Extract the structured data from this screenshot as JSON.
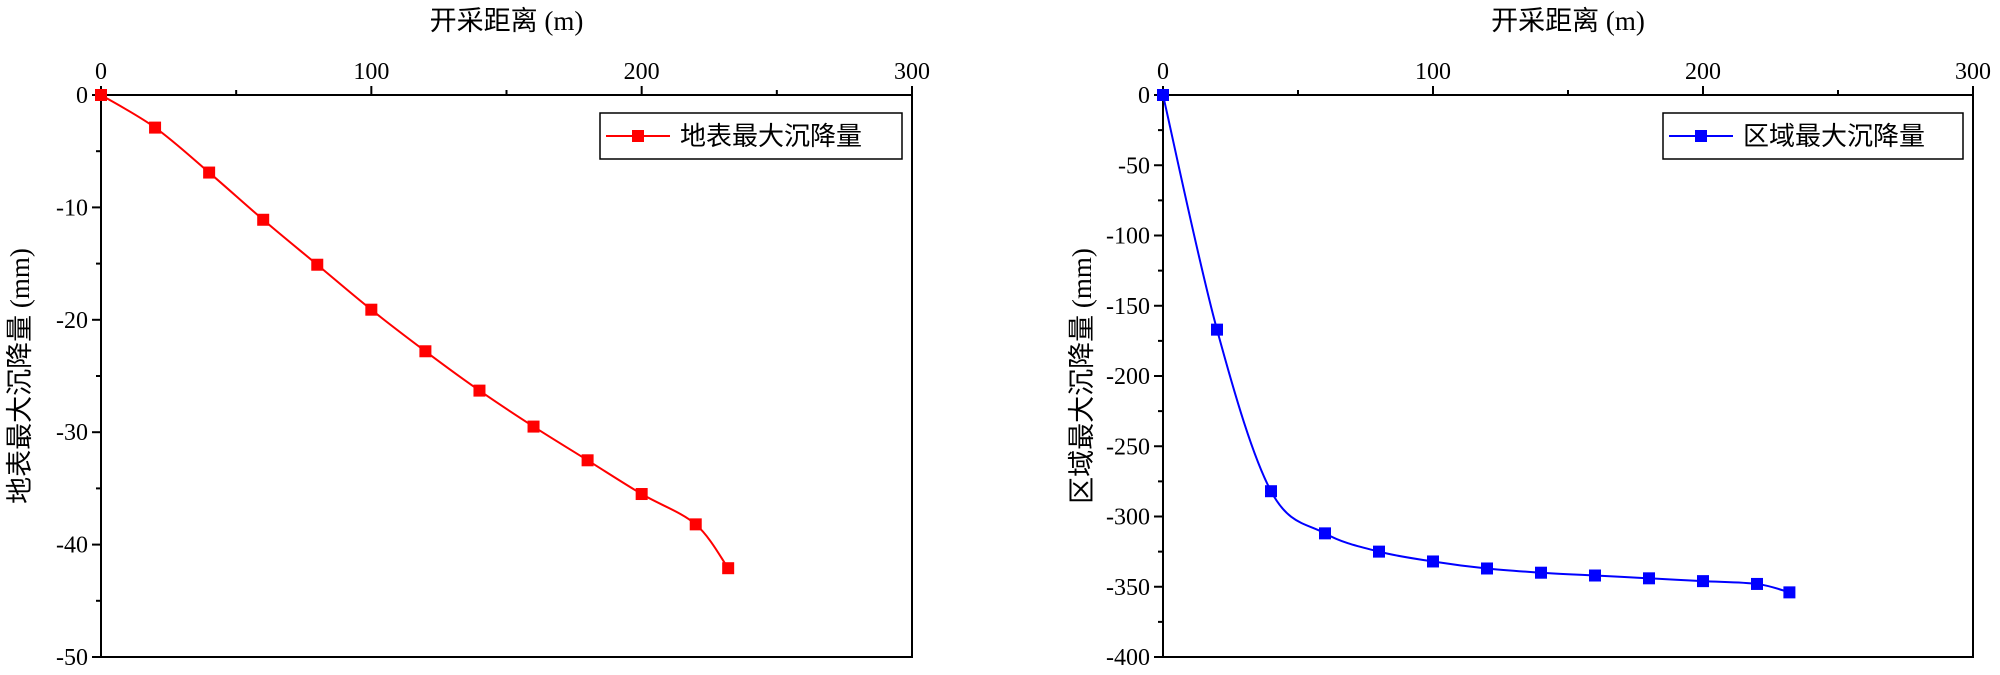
{
  "chart_data": [
    {
      "type": "line",
      "xlabel": "开采距离 (m)",
      "ylabel": "地表最大沉降量 (mm)",
      "xlim": [
        0,
        300
      ],
      "ylim": [
        -50,
        0
      ],
      "xticks": [
        0,
        100,
        200,
        300
      ],
      "yticks": [
        0,
        -10,
        -20,
        -30,
        -40,
        -50
      ],
      "x_axis_position": "top",
      "legend_position": "top-right",
      "grid": false,
      "markers": "square",
      "series": [
        {
          "name": "地表最大沉降量",
          "color": "#ff0000",
          "x": [
            0,
            20,
            40,
            60,
            80,
            100,
            120,
            140,
            160,
            180,
            200,
            220,
            232
          ],
          "y": [
            0,
            -2.9,
            -6.9,
            -11.1,
            -15.1,
            -19.1,
            -22.8,
            -26.3,
            -29.5,
            -32.5,
            -35.5,
            -38.2,
            -42.1
          ]
        }
      ]
    },
    {
      "type": "line",
      "xlabel": "开采距离 (m)",
      "ylabel": "区域最大沉降量 (mm)",
      "xlim": [
        0,
        300
      ],
      "ylim": [
        -400,
        0
      ],
      "xticks": [
        0,
        100,
        200,
        300
      ],
      "yticks": [
        0,
        -50,
        -100,
        -150,
        -200,
        -250,
        -300,
        -350,
        -400
      ],
      "x_axis_position": "top",
      "legend_position": "top-right",
      "grid": false,
      "markers": "square",
      "series": [
        {
          "name": "区域最大沉降量",
          "color": "#0000ff",
          "x": [
            0,
            20,
            40,
            60,
            80,
            100,
            120,
            140,
            160,
            180,
            200,
            220,
            232
          ],
          "y": [
            0,
            -167,
            -282,
            -312,
            -325,
            -332,
            -337,
            -340,
            -342,
            -344,
            -346,
            -348,
            -354
          ]
        }
      ]
    }
  ]
}
